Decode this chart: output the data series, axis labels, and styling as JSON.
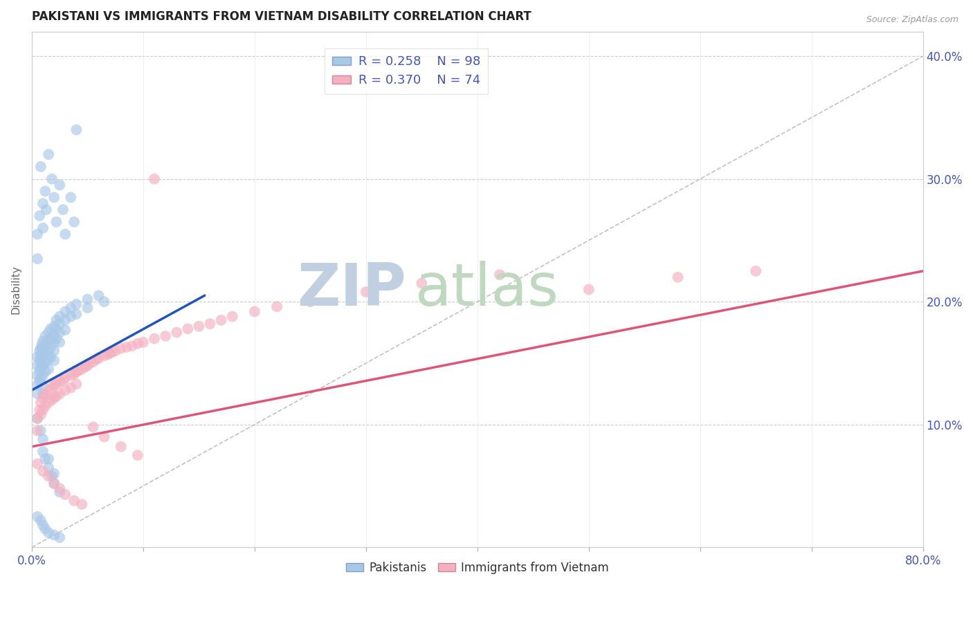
{
  "title": "PAKISTANI VS IMMIGRANTS FROM VIETNAM DISABILITY CORRELATION CHART",
  "source_text": "Source: ZipAtlas.com",
  "ylabel": "Disability",
  "xlim": [
    0.0,
    0.8
  ],
  "ylim": [
    0.0,
    0.42
  ],
  "yticks_right": [
    0.1,
    0.2,
    0.3,
    0.4
  ],
  "yticklabels_right": [
    "10.0%",
    "20.0%",
    "30.0%",
    "40.0%"
  ],
  "blue_R": 0.258,
  "blue_N": 98,
  "pink_R": 0.37,
  "pink_N": 74,
  "blue_color": "#a8c8e8",
  "pink_color": "#f4b0c0",
  "blue_line_color": "#2255bb",
  "pink_line_color": "#dd5577",
  "ref_line_color": "#bbbbbb",
  "watermark_zip": "ZIP",
  "watermark_atlas": "atlas",
  "watermark_color_zip": "#c0d0e0",
  "watermark_color_atlas": "#c0d8c0",
  "legend_label_blue": "Pakistanis",
  "legend_label_pink": "Immigrants from Vietnam",
  "title_fontsize": 12,
  "axis_label_color": "#4455bb",
  "blue_trend_x": [
    0.0,
    0.155
  ],
  "blue_trend_y": [
    0.128,
    0.205
  ],
  "pink_trend_x": [
    0.0,
    0.8
  ],
  "pink_trend_y": [
    0.082,
    0.225
  ],
  "blue_scatter_x": [
    0.005,
    0.005,
    0.005,
    0.005,
    0.005,
    0.007,
    0.007,
    0.007,
    0.007,
    0.008,
    0.008,
    0.008,
    0.008,
    0.009,
    0.009,
    0.009,
    0.01,
    0.01,
    0.01,
    0.01,
    0.01,
    0.01,
    0.01,
    0.012,
    0.012,
    0.012,
    0.012,
    0.012,
    0.015,
    0.015,
    0.015,
    0.015,
    0.015,
    0.017,
    0.017,
    0.017,
    0.017,
    0.02,
    0.02,
    0.02,
    0.02,
    0.02,
    0.022,
    0.022,
    0.022,
    0.025,
    0.025,
    0.025,
    0.025,
    0.03,
    0.03,
    0.03,
    0.035,
    0.035,
    0.04,
    0.04,
    0.05,
    0.05,
    0.06,
    0.065,
    0.005,
    0.005,
    0.007,
    0.008,
    0.01,
    0.01,
    0.012,
    0.013,
    0.015,
    0.018,
    0.02,
    0.022,
    0.025,
    0.028,
    0.03,
    0.035,
    0.038,
    0.04,
    0.01,
    0.012,
    0.015,
    0.018,
    0.02,
    0.005,
    0.008,
    0.01,
    0.012,
    0.015,
    0.02,
    0.025,
    0.005,
    0.008,
    0.01,
    0.015,
    0.02,
    0.025
  ],
  "blue_scatter_y": [
    0.155,
    0.148,
    0.14,
    0.132,
    0.125,
    0.16,
    0.152,
    0.143,
    0.135,
    0.162,
    0.155,
    0.147,
    0.138,
    0.165,
    0.157,
    0.148,
    0.168,
    0.162,
    0.155,
    0.148,
    0.14,
    0.132,
    0.125,
    0.172,
    0.165,
    0.158,
    0.15,
    0.143,
    0.175,
    0.168,
    0.16,
    0.153,
    0.145,
    0.178,
    0.17,
    0.163,
    0.155,
    0.18,
    0.173,
    0.167,
    0.16,
    0.152,
    0.185,
    0.178,
    0.17,
    0.188,
    0.182,
    0.175,
    0.167,
    0.192,
    0.185,
    0.177,
    0.195,
    0.188,
    0.198,
    0.19,
    0.202,
    0.195,
    0.205,
    0.2,
    0.255,
    0.235,
    0.27,
    0.31,
    0.28,
    0.26,
    0.29,
    0.275,
    0.32,
    0.3,
    0.285,
    0.265,
    0.295,
    0.275,
    0.255,
    0.285,
    0.265,
    0.34,
    0.078,
    0.072,
    0.065,
    0.058,
    0.052,
    0.025,
    0.022,
    0.018,
    0.015,
    0.012,
    0.01,
    0.008,
    0.105,
    0.095,
    0.088,
    0.072,
    0.06,
    0.045
  ],
  "pink_scatter_x": [
    0.005,
    0.005,
    0.007,
    0.008,
    0.008,
    0.01,
    0.01,
    0.012,
    0.012,
    0.015,
    0.015,
    0.018,
    0.018,
    0.02,
    0.02,
    0.022,
    0.022,
    0.025,
    0.025,
    0.028,
    0.03,
    0.03,
    0.035,
    0.035,
    0.038,
    0.04,
    0.04,
    0.042,
    0.045,
    0.048,
    0.05,
    0.052,
    0.055,
    0.058,
    0.06,
    0.065,
    0.068,
    0.07,
    0.072,
    0.075,
    0.08,
    0.085,
    0.09,
    0.095,
    0.1,
    0.11,
    0.12,
    0.13,
    0.14,
    0.15,
    0.16,
    0.17,
    0.18,
    0.2,
    0.22,
    0.25,
    0.3,
    0.35,
    0.42,
    0.5,
    0.58,
    0.65,
    0.005,
    0.01,
    0.015,
    0.02,
    0.025,
    0.03,
    0.038,
    0.045,
    0.055,
    0.065,
    0.08,
    0.095,
    0.11
  ],
  "pink_scatter_y": [
    0.105,
    0.095,
    0.112,
    0.118,
    0.108,
    0.122,
    0.112,
    0.125,
    0.115,
    0.128,
    0.118,
    0.13,
    0.12,
    0.132,
    0.122,
    0.133,
    0.123,
    0.135,
    0.125,
    0.136,
    0.138,
    0.128,
    0.14,
    0.13,
    0.141,
    0.143,
    0.133,
    0.144,
    0.145,
    0.147,
    0.148,
    0.15,
    0.151,
    0.153,
    0.154,
    0.156,
    0.157,
    0.158,
    0.159,
    0.16,
    0.162,
    0.163,
    0.164,
    0.166,
    0.167,
    0.17,
    0.172,
    0.175,
    0.178,
    0.18,
    0.182,
    0.185,
    0.188,
    0.192,
    0.196,
    0.2,
    0.208,
    0.215,
    0.222,
    0.21,
    0.22,
    0.225,
    0.068,
    0.062,
    0.058,
    0.052,
    0.048,
    0.043,
    0.038,
    0.035,
    0.098,
    0.09,
    0.082,
    0.075,
    0.3
  ]
}
